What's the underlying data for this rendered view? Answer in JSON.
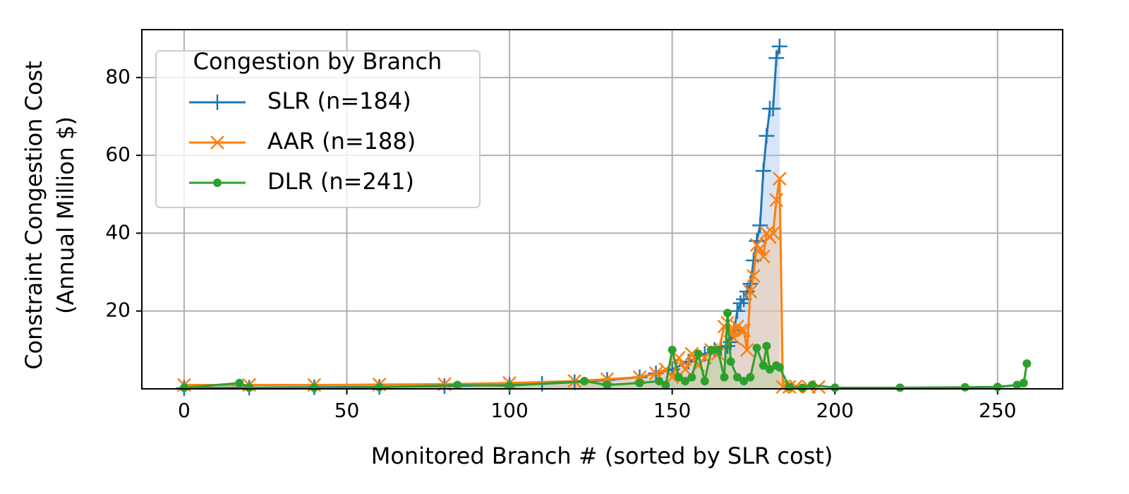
{
  "chart_data": {
    "type": "line",
    "x_label": "Monitored Branch # (sorted by SLR cost)",
    "y_label": [
      "Constraint Congestion Cost",
      "(Annual Million $)"
    ],
    "legend": {
      "title": "Congestion by Branch",
      "loc": "upper left"
    },
    "grid": true,
    "fill": true,
    "xlim": [
      -13,
      270
    ],
    "ylim": [
      0,
      92.3
    ],
    "xticks": [
      0,
      50,
      100,
      150,
      200,
      250
    ],
    "yticks": [
      20,
      40,
      60,
      80
    ],
    "series": [
      {
        "name": "SLR (n=184)",
        "color": "#1f77b4",
        "fill_color": "#a8c4f0",
        "marker": "+",
        "x": [
          0,
          20,
          40,
          60,
          80,
          100,
          110,
          120,
          130,
          140,
          145,
          150,
          155,
          160,
          163,
          165,
          167,
          168,
          169,
          170,
          171,
          172,
          173,
          174,
          175,
          176,
          177,
          178,
          179,
          180,
          181,
          182,
          183
        ],
        "values": [
          0.2,
          0.3,
          0.4,
          0.5,
          0.7,
          1,
          1.3,
          1.7,
          2.3,
          3,
          4,
          5,
          7,
          9,
          10,
          10.5,
          11,
          12,
          15,
          20,
          22,
          23,
          25,
          27,
          33,
          38,
          42,
          56,
          65,
          72,
          72,
          85,
          88
        ]
      },
      {
        "name": "AAR (n=188)",
        "color": "#ff7f0e",
        "fill_color": "#f5c69a",
        "marker": "x",
        "x": [
          0,
          20,
          40,
          60,
          80,
          100,
          120,
          130,
          140,
          145,
          148,
          150,
          152,
          154,
          156,
          158,
          160,
          162,
          164,
          166,
          167,
          168,
          169,
          170,
          171,
          172,
          173,
          174,
          175,
          176,
          177,
          178,
          179,
          180,
          181,
          182,
          183,
          184,
          186,
          188,
          192,
          195
        ],
        "values": [
          1,
          1,
          1,
          1.1,
          1.2,
          1.5,
          2,
          2.5,
          3,
          4,
          5,
          3,
          8,
          5,
          9,
          6,
          8,
          10,
          9,
          16,
          17,
          15,
          13,
          16,
          15,
          15,
          10,
          25,
          29,
          37,
          36,
          34,
          40,
          39,
          40,
          48.5,
          54,
          0.5,
          0.5,
          0.6,
          0.5,
          0.5
        ]
      },
      {
        "name": "DLR (n=241)",
        "color": "#2ca02c",
        "fill_color": "#b5cf9a",
        "marker": "o",
        "x": [
          0,
          17,
          20,
          40,
          60,
          84,
          100,
          123,
          130,
          140,
          146,
          148,
          150,
          152,
          154,
          156,
          158,
          160,
          162,
          164,
          166,
          167,
          168,
          170,
          172,
          174,
          176,
          178,
          179,
          180,
          182,
          183,
          186,
          190,
          193,
          200,
          220,
          240,
          250,
          256,
          258,
          259
        ],
        "values": [
          0.3,
          1.5,
          0.3,
          0.3,
          0.4,
          1,
          0.8,
          2,
          1,
          1.5,
          2,
          1,
          10,
          3,
          2,
          3,
          9,
          2,
          10,
          10,
          3,
          19.5,
          7,
          3,
          2,
          3,
          10.5,
          6,
          11,
          5,
          6,
          5.5,
          0.5,
          0.3,
          1,
          0.3,
          0.3,
          0.4,
          0.5,
          1,
          1.5,
          6.5
        ]
      }
    ]
  }
}
